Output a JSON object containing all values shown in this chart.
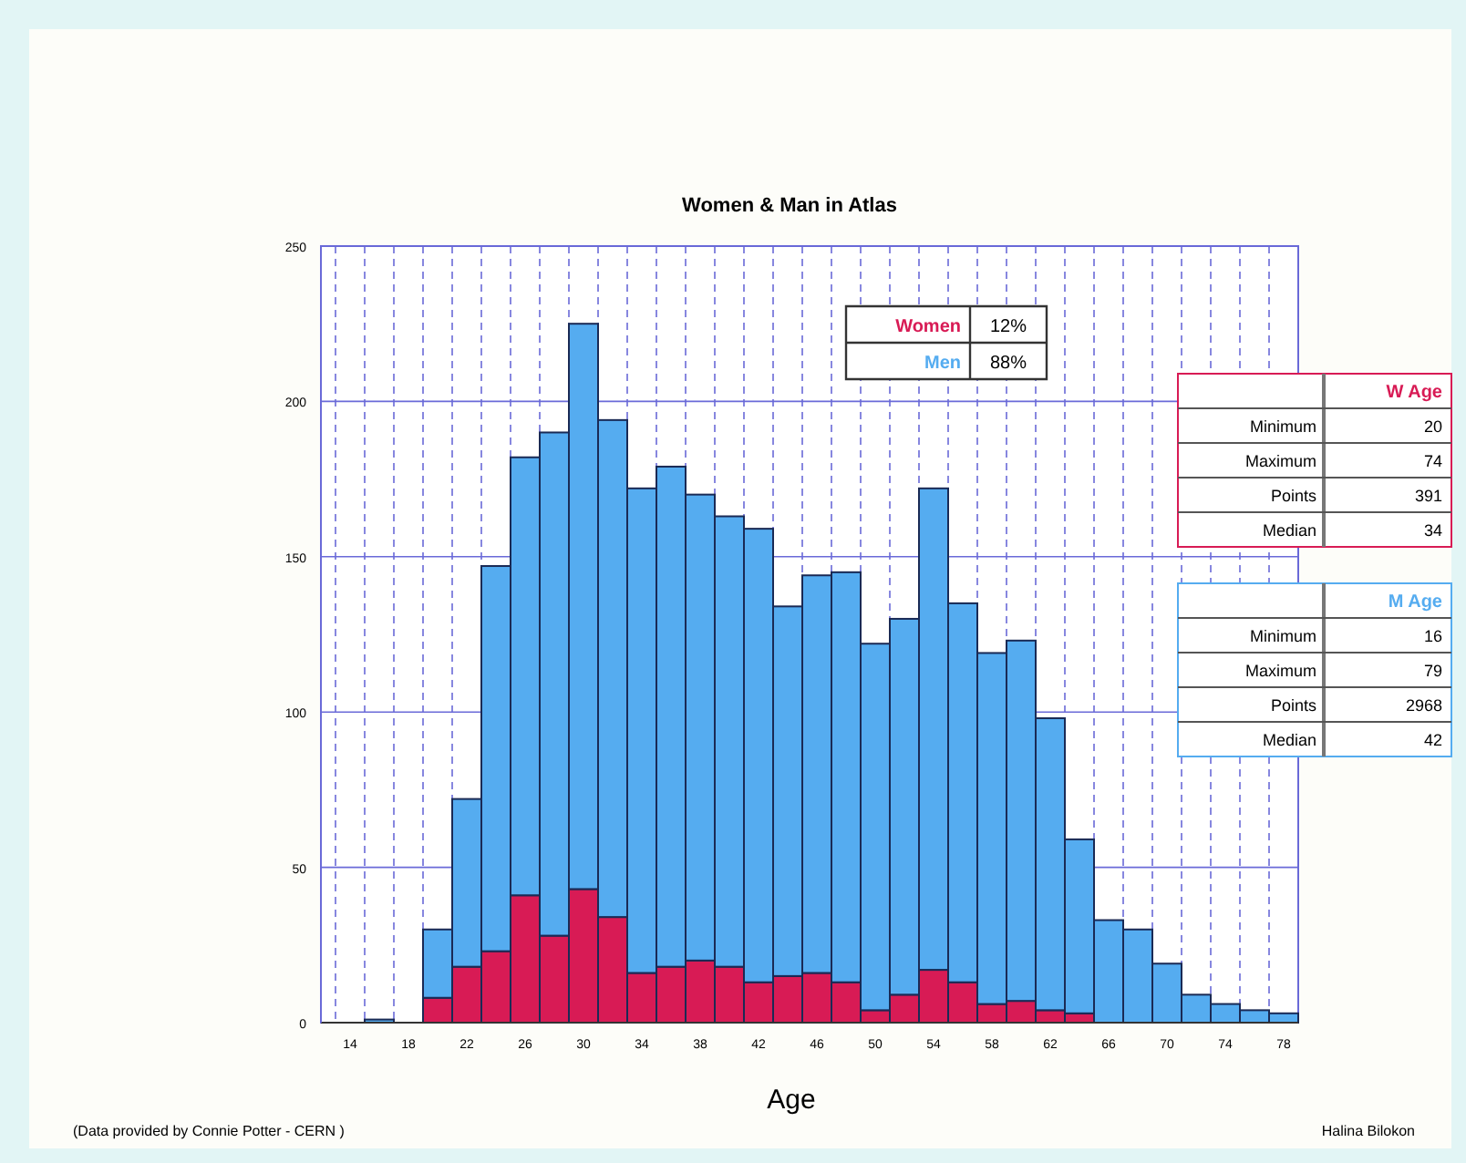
{
  "chart_data": {
    "type": "bar",
    "title": "Women & Man in Atlas",
    "xlabel": "Age",
    "categories": [
      "14",
      null,
      "18",
      null,
      "22",
      null,
      "26",
      null,
      "30",
      null,
      "34",
      null,
      "38",
      null,
      "42",
      null,
      "46",
      null,
      "50",
      null,
      "54",
      null,
      "58",
      null,
      "62",
      null,
      "66",
      null,
      "70",
      null,
      "74",
      null,
      "78"
    ],
    "stacked": true,
    "series": [
      {
        "name": "Women",
        "color": "#d81b55",
        "values": [
          0,
          0,
          0,
          8,
          18,
          23,
          41,
          28,
          43,
          34,
          16,
          18,
          20,
          18,
          13,
          15,
          16,
          13,
          4,
          9,
          17,
          13,
          6,
          7,
          4,
          3,
          0,
          0,
          0,
          null,
          null,
          0,
          0
        ]
      },
      {
        "name": "Men",
        "color": "#55acf0",
        "values": [
          0,
          1,
          0,
          22,
          54,
          124,
          141,
          162,
          182,
          160,
          156,
          161,
          150,
          145,
          146,
          119,
          128,
          132,
          118,
          121,
          155,
          122,
          113,
          116,
          94,
          56,
          33,
          30,
          19,
          9,
          6,
          4,
          3
        ]
      }
    ],
    "ylim": [
      0,
      250
    ],
    "yticks": [
      0,
      50,
      100,
      150,
      200,
      250
    ],
    "grid": true,
    "legend": "top",
    "annotations": [
      "12%",
      "88%",
      "W Age",
      "Minimum",
      "20",
      "Maximum",
      "74",
      "Points",
      "391",
      "Median",
      "34",
      "M Age",
      "Minimum",
      "16",
      "Maximum",
      "79",
      "Points",
      "2968",
      "Median",
      "42",
      "(Data provided by Connie Potter - CERN )",
      "Halina Bilokon"
    ]
  }
}
